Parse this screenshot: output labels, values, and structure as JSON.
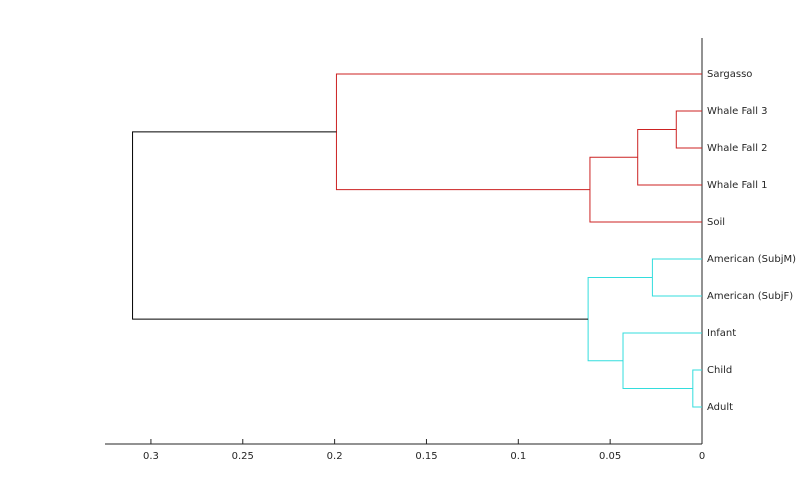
{
  "chart_data": {
    "type": "dendrogram",
    "leaves": [
      "Sargasso",
      "Whale Fall 3",
      "Whale Fall 2",
      "Whale Fall 1",
      "Soil",
      "American (SubjM)",
      "American (SubjF)",
      "Infant",
      "Child",
      "Adult"
    ],
    "links": [
      {
        "left": 1,
        "right": 2,
        "height": 0.014,
        "color": "#cc2222"
      },
      {
        "left": 10,
        "right": 3,
        "height": 0.035,
        "color": "#cc2222"
      },
      {
        "left": 11,
        "right": 4,
        "height": 0.061,
        "color": "#cc2222"
      },
      {
        "left": 0,
        "right": 12,
        "height": 0.199,
        "color": "#cc2222"
      },
      {
        "left": 5,
        "right": 6,
        "height": 0.027,
        "color": "#33dddd"
      },
      {
        "left": 8,
        "right": 9,
        "height": 0.005,
        "color": "#33dddd"
      },
      {
        "left": 7,
        "right": 15,
        "height": 0.043,
        "color": "#33dddd"
      },
      {
        "left": 14,
        "right": 16,
        "height": 0.062,
        "color": "#33dddd"
      },
      {
        "left": 13,
        "right": 17,
        "height": 0.31,
        "color": "#000000"
      }
    ],
    "xlim": [
      0.325,
      0
    ],
    "xticks": [
      0.3,
      0.25,
      0.2,
      0.15,
      0.1,
      0.05,
      0
    ]
  }
}
